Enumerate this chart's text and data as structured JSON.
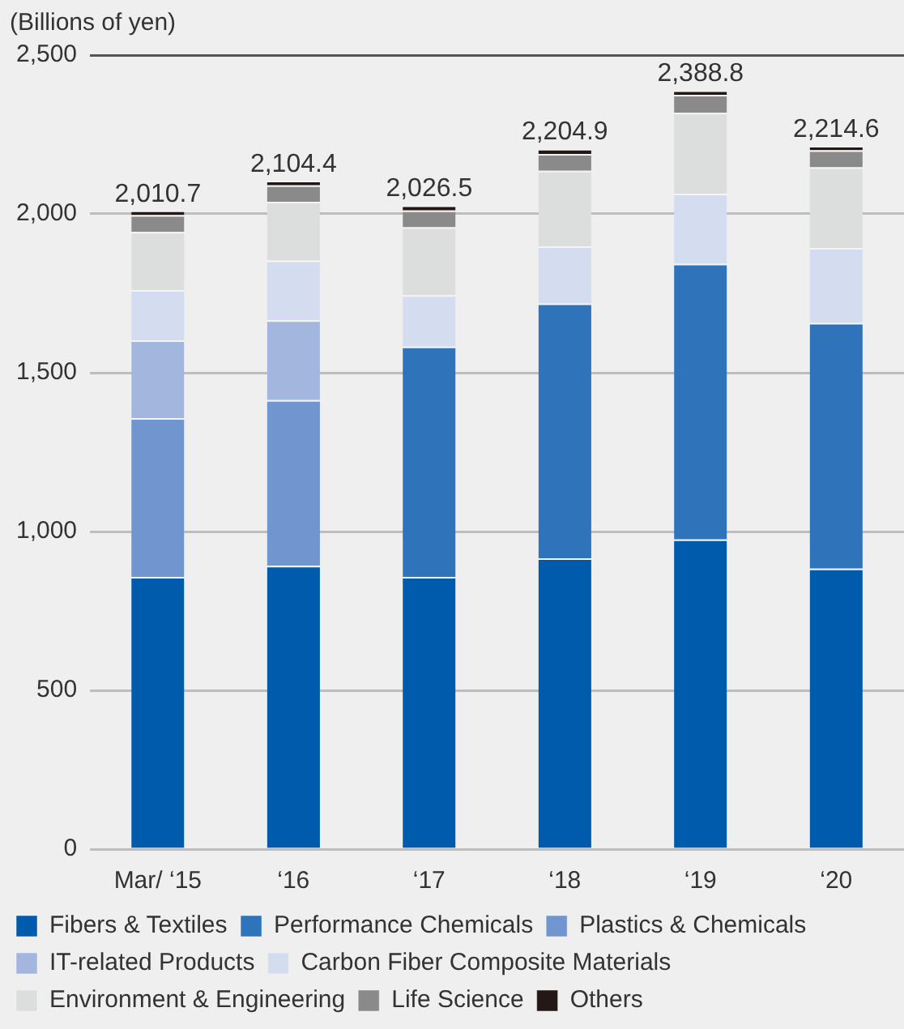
{
  "chart_data": {
    "type": "bar",
    "stacked": true,
    "ylabel": "(Billions of yen)",
    "categories": [
      "Mar/ ‘15",
      "‘16",
      "‘17",
      "‘18",
      "‘19",
      "‘20"
    ],
    "series": [
      {
        "name": "Fibers & Textiles",
        "color": "#005bac",
        "values": [
          857,
          892,
          857,
          916,
          975,
          883
        ]
      },
      {
        "name": "Performance Chemicals",
        "color": "#2f74bb",
        "values": [
          null,
          null,
          725,
          802,
          868,
          774
        ]
      },
      {
        "name": "Plastics & Chemicals",
        "color": "#7095cf",
        "values": [
          500,
          522,
          null,
          null,
          null,
          null
        ]
      },
      {
        "name": "IT-related Products",
        "color": "#a3b7de",
        "values": [
          245,
          251,
          null,
          null,
          null,
          null
        ]
      },
      {
        "name": "Carbon Fiber Composite Materials",
        "color": "#d4ddef",
        "values": [
          158,
          188,
          162,
          180,
          221,
          236
        ]
      },
      {
        "name": "Environment & Engineering",
        "color": "#dcdddd",
        "values": [
          183,
          185,
          214,
          238,
          254,
          254
        ]
      },
      {
        "name": "Life Science",
        "color": "#8a8a8a",
        "values": [
          53,
          52,
          53,
          53,
          57,
          53
        ]
      },
      {
        "name": "Others",
        "color": "#231815",
        "values": [
          14.7,
          14.4,
          15.5,
          15.9,
          13.8,
          14.6
        ]
      }
    ],
    "totals": [
      "2,010.7",
      "2,104.4",
      "2,026.5",
      "2,204.9",
      "2,388.8",
      "2,214.6"
    ],
    "ylim": [
      0,
      2500
    ],
    "yticks": [
      0,
      500,
      {
        "value": 1000,
        "label": "1,000"
      },
      {
        "value": 1500,
        "label": "1,500"
      },
      {
        "value": 2000,
        "label": "2,000"
      },
      {
        "value": 2500,
        "label": "2,500"
      }
    ],
    "grid": "y",
    "legend": "bottom"
  }
}
